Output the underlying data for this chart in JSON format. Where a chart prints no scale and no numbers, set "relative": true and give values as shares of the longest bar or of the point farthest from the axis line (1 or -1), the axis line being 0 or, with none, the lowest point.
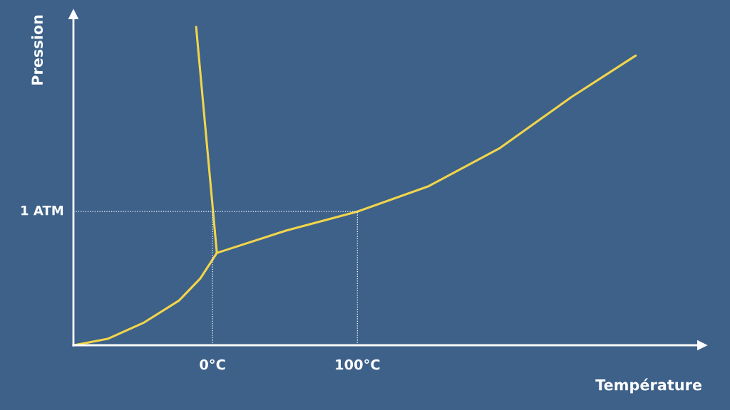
{
  "chart_data": {
    "type": "line",
    "relative": true,
    "xlabel": "Température",
    "ylabel": "Pression",
    "xlim": [
      -96,
      338
    ],
    "xticks": [
      {
        "value": 0,
        "label": "0°C"
      },
      {
        "value": 100,
        "label": "100°C"
      }
    ],
    "series": [
      {
        "color": "#f2d54a",
        "x": [
          -95.6,
          -72.4,
          -47.8,
          -23.2,
          -8.4,
          3.0
        ],
        "values": [
          0,
          0.02,
          0.07,
          0.14,
          0.21,
          0.29
        ]
      },
      {
        "color": "#f2d54a",
        "x": [
          3.0,
          50.7,
          100,
          149.3,
          198.5,
          247.8,
          292.1
        ],
        "values": [
          0.29,
          0.36,
          0.42,
          0.5,
          0.62,
          0.78,
          0.91
        ]
      },
      {
        "color": "#f2d54a",
        "x": [
          3.0,
          -11.3
        ],
        "values": [
          0.29,
          1.0
        ]
      }
    ],
    "ref_lines": [
      {
        "axis": "y",
        "value": 0.42,
        "label": "1 ATM",
        "color": "#ffffff",
        "line_style": "dotted"
      },
      {
        "axis": "x",
        "value": 0,
        "color": "#ffffff",
        "line_style": "dotted"
      },
      {
        "axis": "x",
        "value": 100,
        "color": "#ffffff",
        "line_style": "dotted"
      }
    ],
    "grid": false,
    "legend": false,
    "marker": "none",
    "line_style": "solid"
  }
}
